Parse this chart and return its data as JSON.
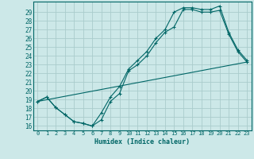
{
  "title": "",
  "xlabel": "Humidex (Indice chaleur)",
  "bg_color": "#cce8e8",
  "grid_color": "#aacccc",
  "line_color": "#006666",
  "xlim": [
    -0.5,
    23.5
  ],
  "ylim": [
    15.5,
    30.2
  ],
  "xticks": [
    0,
    1,
    2,
    3,
    4,
    5,
    6,
    7,
    8,
    9,
    10,
    11,
    12,
    13,
    14,
    15,
    16,
    17,
    18,
    19,
    20,
    21,
    22,
    23
  ],
  "yticks": [
    16,
    17,
    18,
    19,
    20,
    21,
    22,
    23,
    24,
    25,
    26,
    27,
    28,
    29
  ],
  "line1_x": [
    0,
    1,
    2,
    3,
    4,
    5,
    6,
    7,
    8,
    9,
    10,
    11,
    12,
    13,
    14,
    15,
    16,
    17,
    18,
    19,
    20,
    21,
    22,
    23
  ],
  "line1_y": [
    18.8,
    19.3,
    18.1,
    17.3,
    16.5,
    16.3,
    16.0,
    16.7,
    18.8,
    19.7,
    22.3,
    23.0,
    24.0,
    25.5,
    26.7,
    27.3,
    29.3,
    29.3,
    29.0,
    29.0,
    29.2,
    26.5,
    24.5,
    23.3
  ],
  "line2_x": [
    0,
    1,
    2,
    3,
    4,
    5,
    6,
    7,
    8,
    9,
    10,
    11,
    12,
    13,
    14,
    15,
    16,
    17,
    18,
    19,
    20,
    21,
    22,
    23
  ],
  "line2_y": [
    18.8,
    19.3,
    18.1,
    17.3,
    16.5,
    16.3,
    16.0,
    17.5,
    19.3,
    20.5,
    22.5,
    23.5,
    24.5,
    26.0,
    27.0,
    29.0,
    29.5,
    29.5,
    29.3,
    29.3,
    29.7,
    26.7,
    24.7,
    23.5
  ],
  "line3_x": [
    0,
    23
  ],
  "line3_y": [
    18.8,
    23.3
  ]
}
